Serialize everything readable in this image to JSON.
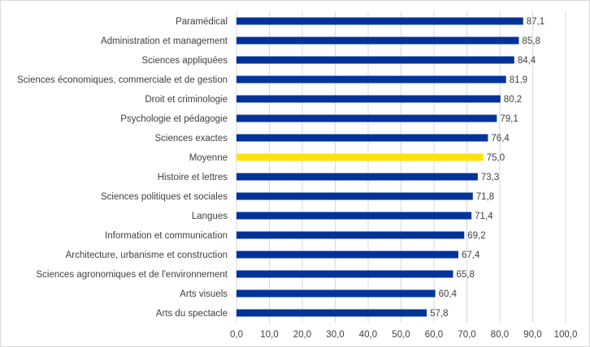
{
  "chart_data": {
    "type": "bar",
    "orientation": "horizontal",
    "title": "",
    "xlabel": "",
    "ylabel": "",
    "xlim": [
      0,
      100
    ],
    "x_ticks": [
      "0,0",
      "10,0",
      "20,0",
      "30,0",
      "40,0",
      "50,0",
      "60,0",
      "70,0",
      "80,0",
      "90,0",
      "100,0"
    ],
    "grid": true,
    "categories": [
      "Paramédical",
      "Administration et management",
      "Sciences appliquées",
      "Sciences économiques, commerciale et de gestion",
      "Droit et criminologie",
      "Psychologie et pédagogie",
      "Sciences exactes",
      "Moyenne",
      "Histoire et lettres",
      "Sciences politiques et sociales",
      "Langues",
      "Information et communication",
      "Architecture, urbanisme et construction",
      "Sciences agronomiques et de l'environnement",
      "Arts visuels",
      "Arts du spectacle"
    ],
    "values": [
      87.1,
      85.8,
      84.4,
      81.9,
      80.2,
      79.1,
      76.4,
      75.0,
      73.3,
      71.8,
      71.4,
      69.2,
      67.4,
      65.8,
      60.4,
      57.8
    ],
    "value_labels": [
      "87,1",
      "85,8",
      "84,4",
      "81,9",
      "80,2",
      "79,1",
      "76,4",
      "75,0",
      "73,3",
      "71,8",
      "71,4",
      "69,2",
      "67,4",
      "65,8",
      "60,4",
      "57,8"
    ],
    "highlight_category": "Moyenne",
    "colors": {
      "bar": "#003399",
      "highlight": "#FFE00F",
      "grid": "#d9d9d9"
    }
  }
}
